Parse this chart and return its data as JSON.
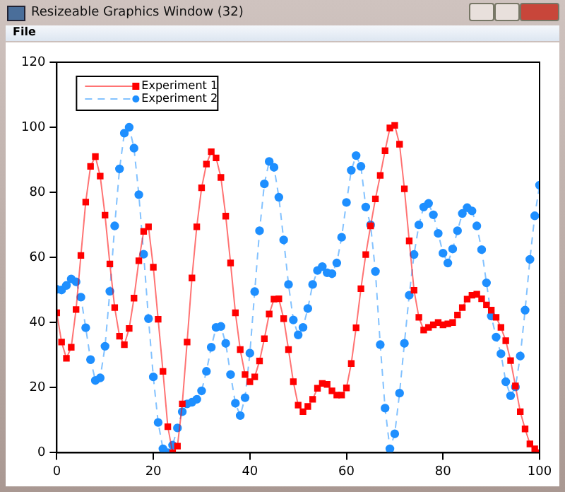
{
  "chart_data": {
    "type": "line",
    "annotations": [
      "Resizeable Graphics Window (32)",
      "File"
    ],
    "x": [
      0,
      1,
      2,
      3,
      4,
      5,
      6,
      7,
      8,
      9,
      10,
      11,
      12,
      13,
      14,
      15,
      16,
      17,
      18,
      19,
      20,
      21,
      22,
      23,
      24,
      25,
      26,
      27,
      28,
      29,
      30,
      31,
      32,
      33,
      34,
      35,
      36,
      37,
      38,
      39,
      40,
      41,
      42,
      43,
      44,
      45,
      46,
      47,
      48,
      49,
      50,
      51,
      52,
      53,
      54,
      55,
      56,
      57,
      58,
      59,
      60,
      61,
      62,
      63,
      64,
      65,
      66,
      67,
      68,
      69,
      70,
      71,
      72,
      73,
      74,
      75,
      76,
      77,
      78,
      79,
      80,
      81,
      82,
      83,
      84,
      85,
      86,
      87,
      88,
      89,
      90,
      91,
      92,
      93,
      94,
      95,
      96,
      97,
      98,
      99,
      100
    ],
    "series": [
      {
        "name": "Experiment 1",
        "color": "#ff0000",
        "marker": "square",
        "line_style": "solid",
        "values": [
          43,
          34,
          29,
          32.4,
          44,
          60.6,
          77,
          88,
          91,
          85,
          73,
          58,
          44.6,
          35.8,
          33.2,
          38.2,
          47.5,
          59,
          68,
          69.4,
          57,
          41,
          25,
          8,
          0,
          2,
          15,
          34,
          53.7,
          69.4,
          81.4,
          88.7,
          92.5,
          90.6,
          84.6,
          72.7,
          58.3,
          43,
          31.7,
          24,
          21.8,
          23.3,
          28.2,
          35,
          42.6,
          47.2,
          47.3,
          41.2,
          31.7,
          21.8,
          14.6,
          12.6,
          14.2,
          16.4,
          19.8,
          21.3,
          21,
          19,
          17.7,
          17.7,
          19.9,
          27.4,
          38.4,
          50.4,
          60.9,
          69.7,
          78,
          85.2,
          92.8,
          99.8,
          100.6,
          94.8,
          81.1,
          65.1,
          49.9,
          41.6,
          37.7,
          38.5,
          39.3,
          40,
          39.3,
          39.6,
          40,
          42.3,
          44.6,
          47.2,
          48.4,
          48.7,
          47.3,
          45.4,
          43.8,
          41.6,
          38.5,
          34.4,
          28.3,
          20.5,
          12.6,
          7.3,
          2.7,
          1.2,
          0
        ]
      },
      {
        "name": "Experiment 2",
        "color": "#1e8fff",
        "marker": "circle",
        "line_style": "dashed",
        "values": [
          50.2,
          50,
          51.4,
          53.4,
          52.5,
          47.8,
          38.4,
          28.6,
          22.2,
          23,
          32.7,
          49.6,
          69.7,
          87.2,
          98.2,
          100,
          93.6,
          79.3,
          61,
          41.2,
          23.3,
          9.3,
          1.2,
          0,
          2.3,
          7.6,
          12.6,
          15,
          15.5,
          16.4,
          19,
          25,
          32.4,
          38.5,
          38.8,
          33.6,
          24,
          15.2,
          11.4,
          16.9,
          30.6,
          49.5,
          68.2,
          82.6,
          89.5,
          87.7,
          78.5,
          65.4,
          51.7,
          40.8,
          36.2,
          38.5,
          44.3,
          51.7,
          56,
          57.2,
          55.3,
          55,
          58.3,
          66.2,
          76.9,
          86.8,
          91.3,
          88,
          75.5,
          70,
          55.7,
          33.2,
          13.7,
          1.2,
          5.8,
          18.3,
          33.6,
          48.4,
          60.9,
          70,
          75.5,
          76.6,
          73.1,
          67.4,
          61.3,
          58.3,
          62.6,
          68.2,
          73.5,
          75.3,
          74.3,
          69.7,
          62.4,
          52.2,
          42,
          35.5,
          30.4,
          21.8,
          17.5,
          20.2,
          29.7,
          43.8,
          59.4,
          72.8,
          82.2
        ]
      }
    ],
    "xlim": [
      0,
      100
    ],
    "xticks": [
      0,
      20,
      40,
      60,
      80,
      100
    ],
    "ylim": [
      0,
      120
    ],
    "yticks": [
      0,
      20,
      40,
      60,
      80,
      100,
      120
    ],
    "grid": false,
    "legend": "top left"
  }
}
